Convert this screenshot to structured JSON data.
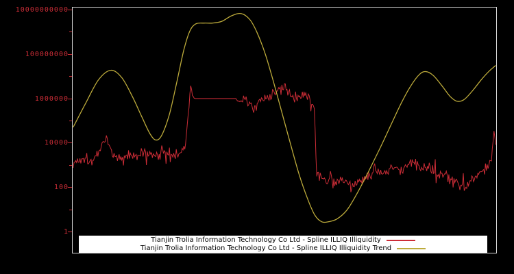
{
  "figure": {
    "background": "#000000",
    "plot_border_color": "#d9d9d9"
  },
  "axis": {
    "label_color": "#cd2d37",
    "tick_color": "#cd2d37"
  },
  "legend": {
    "background": "#ffffff",
    "text_color": "#000000"
  },
  "chart_data": {
    "type": "line",
    "y_scale": "log",
    "y_log_range": [
      -1,
      10.2
    ],
    "x_range": [
      0,
      1
    ],
    "grid": false,
    "legend_position": "bottom-center-inside",
    "yticks": [
      {
        "label": "1",
        "log": 0
      },
      {
        "label": "100",
        "log": 2
      },
      {
        "label": "10000",
        "log": 4
      },
      {
        "label": "1000000",
        "log": 6
      },
      {
        "label": "100000000",
        "log": 8
      },
      {
        "label": "10000000000",
        "log": 10
      }
    ],
    "minor_tick_logs": [
      1,
      3,
      5,
      7,
      9
    ],
    "series": [
      {
        "name": "Tianjin Trolia Information Technology Co Ltd - Spline ILLIQ Illiquidity",
        "color": "#cd2d37",
        "style": "noisy",
        "stroke_width": 1,
        "noise": {
          "seed": 1337,
          "spike_probability": 0.07,
          "spike_scale": 2.3
        },
        "keypoints": [
          [
            0.0,
            3.05,
            0.3
          ],
          [
            0.025,
            3.35,
            0.3
          ],
          [
            0.05,
            3.15,
            0.28
          ],
          [
            0.07,
            4.0,
            0.45
          ],
          [
            0.078,
            4.3,
            0.35
          ],
          [
            0.09,
            3.6,
            0.3
          ],
          [
            0.11,
            3.25,
            0.3
          ],
          [
            0.13,
            3.45,
            0.35
          ],
          [
            0.15,
            3.3,
            0.3
          ],
          [
            0.17,
            3.6,
            0.32
          ],
          [
            0.19,
            3.4,
            0.3
          ],
          [
            0.21,
            3.65,
            0.3
          ],
          [
            0.23,
            3.35,
            0.3
          ],
          [
            0.25,
            3.5,
            0.28
          ],
          [
            0.265,
            3.8,
            0.25
          ],
          [
            0.272,
            5.2,
            0.3
          ],
          [
            0.277,
            6.35,
            0.25
          ],
          [
            0.283,
            6.05,
            0.1
          ],
          [
            0.288,
            6.0,
            0.0
          ],
          [
            0.385,
            6.0,
            0.0
          ],
          [
            0.393,
            5.85,
            0.22
          ],
          [
            0.41,
            5.95,
            0.28
          ],
          [
            0.428,
            5.62,
            0.3
          ],
          [
            0.445,
            5.85,
            0.28
          ],
          [
            0.462,
            6.05,
            0.3
          ],
          [
            0.48,
            6.3,
            0.35
          ],
          [
            0.5,
            6.4,
            0.35
          ],
          [
            0.515,
            6.15,
            0.32
          ],
          [
            0.532,
            6.0,
            0.3
          ],
          [
            0.548,
            6.18,
            0.3
          ],
          [
            0.562,
            5.9,
            0.28
          ],
          [
            0.571,
            5.55,
            0.2
          ],
          [
            0.576,
            2.6,
            0.3
          ],
          [
            0.59,
            2.25,
            0.32
          ],
          [
            0.61,
            2.45,
            0.32
          ],
          [
            0.628,
            2.2,
            0.3
          ],
          [
            0.645,
            2.4,
            0.28
          ],
          [
            0.662,
            2.15,
            0.28
          ],
          [
            0.68,
            2.3,
            0.28
          ],
          [
            0.7,
            2.55,
            0.32
          ],
          [
            0.718,
            2.8,
            0.35
          ],
          [
            0.735,
            2.6,
            0.32
          ],
          [
            0.752,
            2.9,
            0.33
          ],
          [
            0.77,
            2.7,
            0.3
          ],
          [
            0.788,
            2.95,
            0.33
          ],
          [
            0.806,
            3.0,
            0.33
          ],
          [
            0.824,
            2.8,
            0.3
          ],
          [
            0.842,
            2.95,
            0.3
          ],
          [
            0.86,
            2.7,
            0.3
          ],
          [
            0.878,
            2.55,
            0.3
          ],
          [
            0.895,
            2.35,
            0.3
          ],
          [
            0.912,
            2.2,
            0.28
          ],
          [
            0.928,
            2.05,
            0.28
          ],
          [
            0.945,
            2.4,
            0.3
          ],
          [
            0.962,
            2.65,
            0.32
          ],
          [
            0.978,
            2.95,
            0.33
          ],
          [
            0.99,
            3.3,
            0.3
          ],
          [
            0.996,
            4.45,
            0.25
          ],
          [
            1.0,
            4.0,
            0.2
          ]
        ]
      },
      {
        "name": "Tianjin Trolia Information Technology Co Ltd - Spline ILLIQ Illiquidity Trend",
        "color": "#bdab3b",
        "style": "smooth",
        "stroke_width": 1.3,
        "keypoints": [
          [
            0.0,
            4.7
          ],
          [
            0.03,
            5.8
          ],
          [
            0.06,
            6.85
          ],
          [
            0.089,
            7.28
          ],
          [
            0.115,
            6.95
          ],
          [
            0.14,
            6.1
          ],
          [
            0.163,
            5.15
          ],
          [
            0.182,
            4.4
          ],
          [
            0.196,
            4.12
          ],
          [
            0.21,
            4.35
          ],
          [
            0.228,
            5.3
          ],
          [
            0.246,
            6.8
          ],
          [
            0.262,
            8.2
          ],
          [
            0.276,
            9.05
          ],
          [
            0.29,
            9.38
          ],
          [
            0.31,
            9.42
          ],
          [
            0.33,
            9.42
          ],
          [
            0.352,
            9.5
          ],
          [
            0.375,
            9.75
          ],
          [
            0.398,
            9.85
          ],
          [
            0.418,
            9.58
          ],
          [
            0.435,
            9.0
          ],
          [
            0.455,
            8.0
          ],
          [
            0.475,
            6.7
          ],
          [
            0.495,
            5.3
          ],
          [
            0.515,
            3.9
          ],
          [
            0.535,
            2.55
          ],
          [
            0.555,
            1.45
          ],
          [
            0.572,
            0.72
          ],
          [
            0.588,
            0.42
          ],
          [
            0.605,
            0.42
          ],
          [
            0.625,
            0.55
          ],
          [
            0.648,
            0.95
          ],
          [
            0.672,
            1.7
          ],
          [
            0.698,
            2.65
          ],
          [
            0.725,
            3.7
          ],
          [
            0.752,
            4.8
          ],
          [
            0.778,
            5.85
          ],
          [
            0.8,
            6.6
          ],
          [
            0.82,
            7.1
          ],
          [
            0.835,
            7.22
          ],
          [
            0.852,
            7.05
          ],
          [
            0.872,
            6.6
          ],
          [
            0.892,
            6.1
          ],
          [
            0.908,
            5.88
          ],
          [
            0.925,
            5.95
          ],
          [
            0.945,
            6.35
          ],
          [
            0.968,
            6.9
          ],
          [
            0.985,
            7.25
          ],
          [
            1.0,
            7.5
          ]
        ]
      }
    ]
  }
}
